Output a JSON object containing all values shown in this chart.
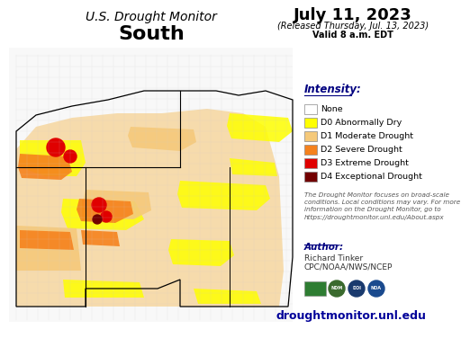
{
  "title_line1": "U.S. Drought Monitor",
  "title_line2": "South",
  "date_line1": "July 11, 2023",
  "date_line2": "(Released Thursday, Jul. 13, 2023)",
  "date_line3": "Valid 8 a.m. EDT",
  "intensity_label": "Intensity:",
  "legend_items": [
    {
      "color": "#FFFFFF",
      "label": "None"
    },
    {
      "color": "#FFFF00",
      "label": "D0 Abnormally Dry"
    },
    {
      "color": "#F5C97A",
      "label": "D1 Moderate Drought"
    },
    {
      "color": "#F5821E",
      "label": "D2 Severe Drought"
    },
    {
      "color": "#E00000",
      "label": "D3 Extreme Drought"
    },
    {
      "color": "#720000",
      "label": "D4 Exceptional Drought"
    }
  ],
  "disclaimer_text": "The Drought Monitor focuses on broad-scale\nconditions. Local conditions may vary. For more\ninformation on the Drought Monitor, go to\nhttps://droughtmonitor.unl.edu/About.aspx",
  "author_label": "Author:",
  "author_name": "Richard Tinker",
  "author_org": "CPC/NOAA/NWS/NCEP",
  "website": "droughtmonitor.unl.edu",
  "bg_color": "#FFFFFF",
  "title_color": "#000000",
  "date_color": "#000000",
  "legend_text_color": "#000000",
  "intensity_color": "#000080",
  "author_color": "#000080",
  "website_color": "#000099",
  "disclaimer_color": "#555555",
  "secondary_text_color": "#333333"
}
